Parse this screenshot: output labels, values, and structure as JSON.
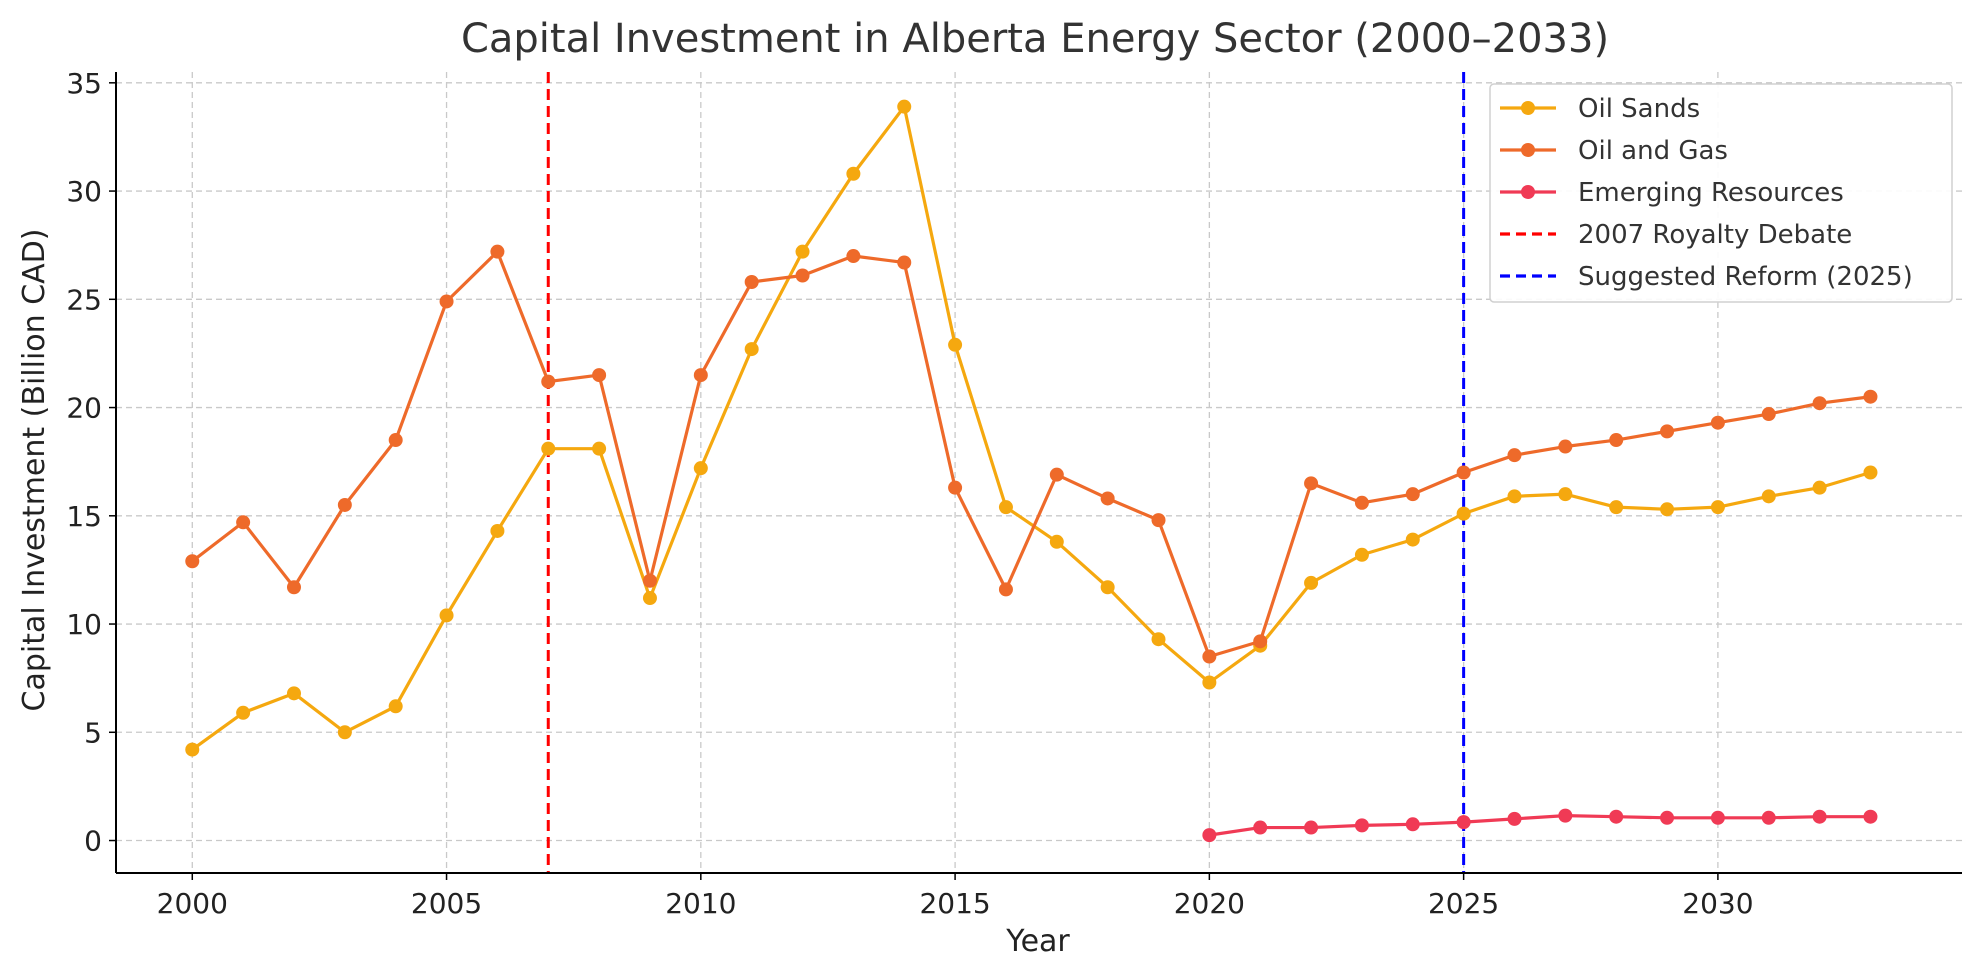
{
  "chart_data": {
    "type": "line",
    "title": "Capital Investment in Alberta Energy Sector (2000–2033)",
    "xlabel": "Year",
    "ylabel": "Capital Investment (Billion CAD)",
    "xlim": [
      1998.5,
      2034.8
    ],
    "ylim": [
      -1.5,
      35.5
    ],
    "xticks": [
      2000,
      2005,
      2010,
      2015,
      2020,
      2025,
      2030
    ],
    "yticks": [
      0,
      5,
      10,
      15,
      20,
      25,
      30,
      35
    ],
    "grid": true,
    "legend_position": "top-right",
    "series": [
      {
        "name": "Oil Sands",
        "color": "#F5A80F",
        "x": [
          2000,
          2001,
          2002,
          2003,
          2004,
          2005,
          2006,
          2007,
          2008,
          2009,
          2010,
          2011,
          2012,
          2013,
          2014,
          2015,
          2016,
          2017,
          2018,
          2019,
          2020,
          2021,
          2022,
          2023,
          2024,
          2025,
          2026,
          2027,
          2028,
          2029,
          2030,
          2031,
          2032,
          2033
        ],
        "values": [
          4.2,
          5.9,
          6.8,
          5.0,
          6.2,
          10.4,
          14.3,
          18.1,
          18.1,
          11.2,
          17.2,
          22.7,
          27.2,
          30.8,
          33.9,
          22.9,
          15.4,
          13.8,
          11.7,
          9.3,
          7.3,
          9.0,
          11.9,
          13.2,
          13.9,
          15.1,
          15.9,
          16.0,
          15.4,
          15.3,
          15.4,
          15.9,
          16.3,
          17.0
        ]
      },
      {
        "name": "Oil and Gas",
        "color": "#EE6A2A",
        "x": [
          2000,
          2001,
          2002,
          2003,
          2004,
          2005,
          2006,
          2007,
          2008,
          2009,
          2010,
          2011,
          2012,
          2013,
          2014,
          2015,
          2016,
          2017,
          2018,
          2019,
          2020,
          2021,
          2022,
          2023,
          2024,
          2025,
          2026,
          2027,
          2028,
          2029,
          2030,
          2031,
          2032,
          2033
        ],
        "values": [
          12.9,
          14.7,
          11.7,
          15.5,
          18.5,
          24.9,
          27.2,
          21.2,
          21.5,
          12.0,
          21.5,
          25.8,
          26.1,
          27.0,
          26.7,
          16.3,
          11.6,
          16.9,
          15.8,
          14.8,
          8.5,
          9.2,
          16.5,
          15.6,
          16.0,
          17.0,
          17.8,
          18.2,
          18.5,
          18.9,
          19.3,
          19.7,
          20.2,
          20.5
        ]
      },
      {
        "name": "Emerging Resources",
        "color": "#F03A55",
        "x": [
          2020,
          2021,
          2022,
          2023,
          2024,
          2025,
          2026,
          2027,
          2028,
          2029,
          2030,
          2031,
          2032,
          2033
        ],
        "values": [
          0.25,
          0.6,
          0.6,
          0.7,
          0.75,
          0.85,
          1.0,
          1.15,
          1.1,
          1.05,
          1.05,
          1.05,
          1.1,
          1.1
        ]
      }
    ],
    "vlines": [
      {
        "name": "2007 Royalty Debate",
        "x": 2007,
        "color": "#FF0000"
      },
      {
        "name": "Suggested Reform (2025)",
        "x": 2025,
        "color": "#0000FF"
      }
    ]
  }
}
